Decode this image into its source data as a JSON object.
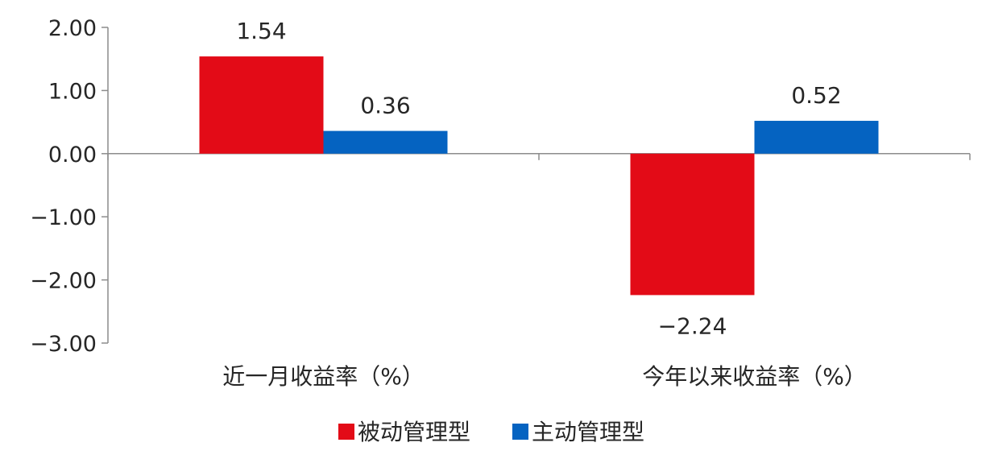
{
  "chart_data": {
    "type": "bar",
    "title": "",
    "xlabel": "",
    "ylabel": "",
    "categories": [
      "近一月收益率（%）",
      "今年以来收益率（%）"
    ],
    "series": [
      {
        "name": "被动管理型",
        "values": [
          1.54,
          -2.24
        ],
        "labels": [
          "1.54",
          "−2.24"
        ],
        "color": "#E30B17"
      },
      {
        "name": "主动管理型",
        "values": [
          0.36,
          0.52
        ],
        "labels": [
          "0.36",
          "0.52"
        ],
        "color": "#0563C1"
      }
    ],
    "ylim": [
      -3,
      2
    ],
    "yticks": [
      2,
      1,
      0,
      -1,
      -2,
      -3
    ],
    "ytick_labels": [
      "2.00",
      "1.00",
      "0.00",
      "−1.00",
      "−2.00",
      "−3.00"
    ],
    "grid": false,
    "legend_position": "bottom"
  }
}
